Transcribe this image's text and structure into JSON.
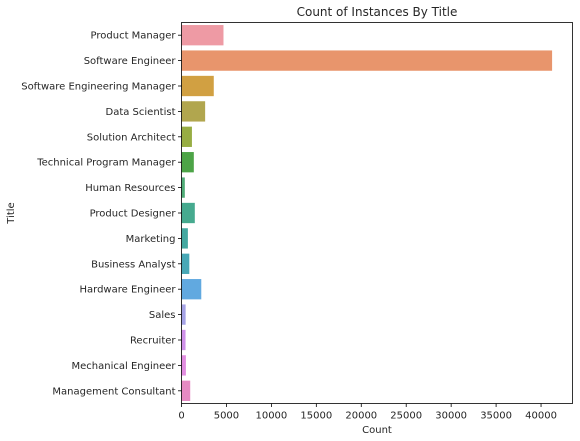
{
  "chart_data": {
    "type": "bar",
    "orientation": "horizontal",
    "title": "Count of Instances By Title",
    "xlabel": "Count",
    "ylabel": "Title",
    "xlim": [
      0,
      43500
    ],
    "xticks": [
      0,
      5000,
      10000,
      15000,
      20000,
      25000,
      30000,
      35000,
      40000
    ],
    "grid": false,
    "categories": [
      "Product Manager",
      "Software Engineer",
      "Software Engineering Manager",
      "Data Scientist",
      "Solution Architect",
      "Technical Program Manager",
      "Human Resources",
      "Product Designer",
      "Marketing",
      "Business Analyst",
      "Hardware Engineer",
      "Sales",
      "Recruiter",
      "Mechanical Engineer",
      "Management Consultant"
    ],
    "values": [
      4670,
      41230,
      3590,
      2630,
      1160,
      1370,
      370,
      1480,
      710,
      870,
      2200,
      460,
      450,
      490,
      970
    ],
    "colors": [
      "#ee9aa4",
      "#e8956c",
      "#d1a042",
      "#b1a64e",
      "#97ad43",
      "#4da447",
      "#50ac77",
      "#46aa8f",
      "#44a9a1",
      "#48a8b6",
      "#61a9e0",
      "#a5a3e6",
      "#cf91e9",
      "#e18de0",
      "#e68ac3"
    ]
  }
}
